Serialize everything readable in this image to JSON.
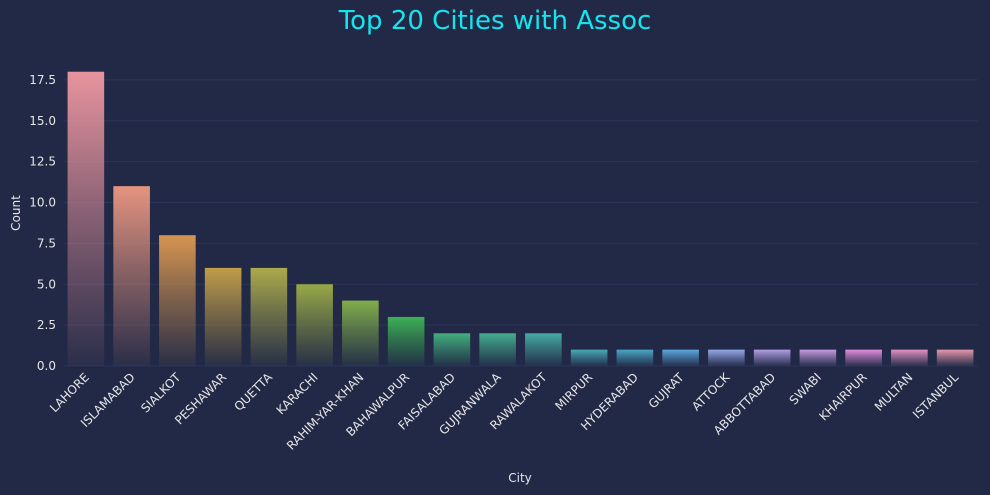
{
  "chart_data": {
    "type": "bar",
    "title": "Top 20 Cities with Assoc",
    "xlabel": "City",
    "ylabel": "Count",
    "ylim": [
      0,
      18.9
    ],
    "yticks": [
      "0.0",
      "2.5",
      "5.0",
      "7.5",
      "10.0",
      "12.5",
      "15.0",
      "17.5"
    ],
    "categories": [
      "LAHORE",
      "ISLAMABAD",
      "SIALKOT",
      "PESHAWAR",
      "QUETTA",
      "KARACHI",
      "RAHIM-YAR-KHAN",
      "BAHAWALPUR",
      "FAISALABAD",
      "GUJRANWALA",
      "RAWALAKOT",
      "MIRPUR",
      "HYDERABAD",
      "GUJRAT",
      "ATTOCK",
      "ABBOTTABAD",
      "SWABI",
      "KHAIRPUR",
      "MULTAN",
      "ISTANBUL"
    ],
    "values": [
      18,
      11,
      8,
      6,
      6,
      5,
      4,
      3,
      2,
      2,
      2,
      1,
      1,
      1,
      1,
      1,
      1,
      1,
      1,
      1
    ],
    "colors": [
      "#e8949e",
      "#e59480",
      "#d69551",
      "#c09d48",
      "#acaa4c",
      "#98a947",
      "#82ae4b",
      "#3db054",
      "#42b07d",
      "#44ae90",
      "#46aca5",
      "#47aab6",
      "#49a7c5",
      "#5ba8df",
      "#95a8e8",
      "#b29fe5",
      "#c69ae2",
      "#e28fe0",
      "#e492c2",
      "#e697ab"
    ],
    "grid": true,
    "background": "#212946"
  }
}
